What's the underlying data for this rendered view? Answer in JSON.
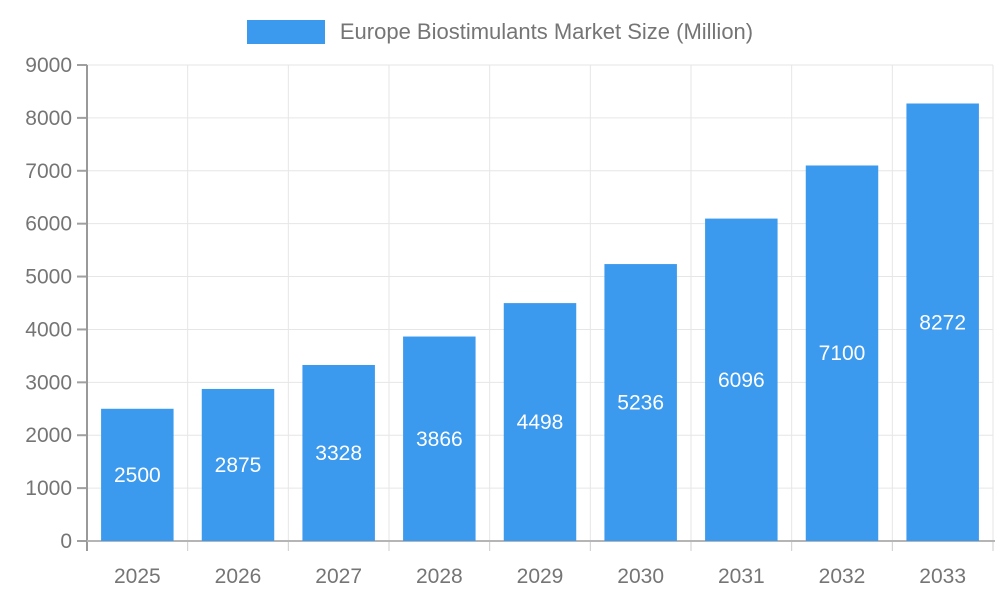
{
  "chart_data": {
    "type": "bar",
    "legend": "Europe Biostimulants Market Size (Million)",
    "categories": [
      "2025",
      "2026",
      "2027",
      "2028",
      "2029",
      "2030",
      "2031",
      "2032",
      "2033"
    ],
    "values": [
      2500,
      2875,
      3328,
      3866,
      4498,
      5236,
      6096,
      7100,
      8272
    ],
    "xlabel": "",
    "ylabel": "",
    "ylim": [
      0,
      9000
    ],
    "ytick_step": 1000,
    "yticks": [
      0,
      1000,
      2000,
      3000,
      4000,
      5000,
      6000,
      7000,
      8000,
      9000
    ],
    "grid": true,
    "legend_position": "top",
    "bar_color": "#3B99EE",
    "bar_label_color": "#FFFFFF",
    "axis_text_color": "#757575",
    "gridline_color": "#E6E6E6",
    "y_axis_line_color": "#999999",
    "x_axis_line_color": "#B5B5B5",
    "tick_color": "#CCCCCC"
  }
}
